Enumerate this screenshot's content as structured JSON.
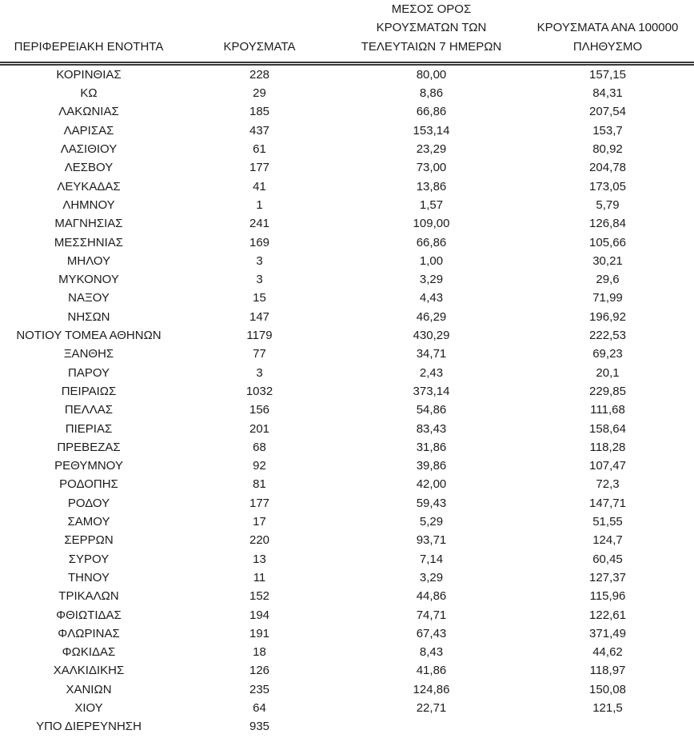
{
  "table": {
    "header": {
      "col1": {
        "lines": [
          "ΠΕΡΙΦΕΡΕΙΑΚΗ ΕΝΟΤΗΤΑ"
        ]
      },
      "col2": {
        "lines": [
          "ΚΡΟΥΣΜΑΤΑ"
        ]
      },
      "col3": {
        "lines": [
          "ΜΕΣΟΣ ΟΡΟΣ",
          "ΚΡΟΥΣΜΑΤΩΝ ΤΩΝ",
          "ΤΕΛΕΥΤΑΙΩΝ 7 ΗΜΕΡΩΝ"
        ]
      },
      "col4": {
        "lines": [
          "ΚΡΟΥΣΜΑΤΑ ΑΝΑ 100000",
          "ΠΛΗΘΥΣΜΟ"
        ]
      }
    },
    "rows": [
      [
        "ΚΟΡΙΝΘΙΑΣ",
        "228",
        "80,00",
        "157,15"
      ],
      [
        "ΚΩ",
        "29",
        "8,86",
        "84,31"
      ],
      [
        "ΛΑΚΩΝΙΑΣ",
        "185",
        "66,86",
        "207,54"
      ],
      [
        "ΛΑΡΙΣΑΣ",
        "437",
        "153,14",
        "153,7"
      ],
      [
        "ΛΑΣΙΘΙΟΥ",
        "61",
        "23,29",
        "80,92"
      ],
      [
        "ΛΕΣΒΟΥ",
        "177",
        "73,00",
        "204,78"
      ],
      [
        "ΛΕΥΚΑΔΑΣ",
        "41",
        "13,86",
        "173,05"
      ],
      [
        "ΛΗΜΝΟΥ",
        "1",
        "1,57",
        "5,79"
      ],
      [
        "ΜΑΓΝΗΣΙΑΣ",
        "241",
        "109,00",
        "126,84"
      ],
      [
        "ΜΕΣΣΗΝΙΑΣ",
        "169",
        "66,86",
        "105,66"
      ],
      [
        "ΜΗΛΟΥ",
        "3",
        "1,00",
        "30,21"
      ],
      [
        "ΜΥΚΟΝΟΥ",
        "3",
        "3,29",
        "29,6"
      ],
      [
        "ΝΑΞΟΥ",
        "15",
        "4,43",
        "71,99"
      ],
      [
        "ΝΗΣΩΝ",
        "147",
        "46,29",
        "196,92"
      ],
      [
        "ΝΟΤΙΟΥ ΤΟΜΕΑ ΑΘΗΝΩΝ",
        "1179",
        "430,29",
        "222,53"
      ],
      [
        "ΞΑΝΘΗΣ",
        "77",
        "34,71",
        "69,23"
      ],
      [
        "ΠΑΡΟΥ",
        "3",
        "2,43",
        "20,1"
      ],
      [
        "ΠΕΙΡΑΙΩΣ",
        "1032",
        "373,14",
        "229,85"
      ],
      [
        "ΠΕΛΛΑΣ",
        "156",
        "54,86",
        "111,68"
      ],
      [
        "ΠΙΕΡΙΑΣ",
        "201",
        "83,43",
        "158,64"
      ],
      [
        "ΠΡΕΒΕΖΑΣ",
        "68",
        "31,86",
        "118,28"
      ],
      [
        "ΡΕΘΥΜΝΟΥ",
        "92",
        "39,86",
        "107,47"
      ],
      [
        "ΡΟΔΟΠΗΣ",
        "81",
        "42,00",
        "72,3"
      ],
      [
        "ΡΟΔΟΥ",
        "177",
        "59,43",
        "147,71"
      ],
      [
        "ΣΑΜΟΥ",
        "17",
        "5,29",
        "51,55"
      ],
      [
        "ΣΕΡΡΩΝ",
        "220",
        "93,71",
        "124,7"
      ],
      [
        "ΣΥΡΟΥ",
        "13",
        "7,14",
        "60,45"
      ],
      [
        "ΤΗΝΟΥ",
        "11",
        "3,29",
        "127,37"
      ],
      [
        "ΤΡΙΚΑΛΩΝ",
        "152",
        "44,86",
        "115,96"
      ],
      [
        "ΦΘΙΩΤΙΔΑΣ",
        "194",
        "74,71",
        "122,61"
      ],
      [
        "ΦΛΩΡΙΝΑΣ",
        "191",
        "67,43",
        "371,49"
      ],
      [
        "ΦΩΚΙΔΑΣ",
        "18",
        "8,43",
        "44,62"
      ],
      [
        "ΧΑΛΚΙΔΙΚΗΣ",
        "126",
        "41,86",
        "118,97"
      ],
      [
        "ΧΑΝΙΩΝ",
        "235",
        "124,86",
        "150,08"
      ],
      [
        "ΧΙΟΥ",
        "64",
        "22,71",
        "121,5"
      ],
      [
        "ΥΠΟ ΔΙΕΡΕΥΝΗΣΗ",
        "935",
        "",
        ""
      ]
    ],
    "cell_names": [
      "region-name-cell",
      "cases-cell",
      "avg-7day-cell",
      "per-100k-cell"
    ]
  },
  "colors": {
    "text": "#1c1c1c",
    "header_rule": "#383838",
    "background": "#ffffff"
  }
}
